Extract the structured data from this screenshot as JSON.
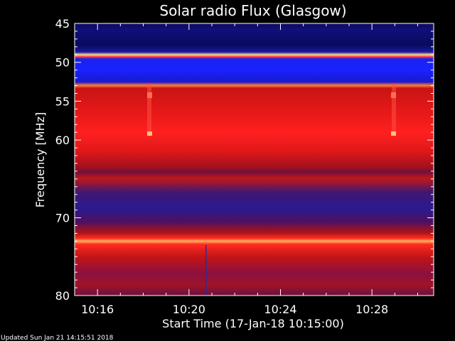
{
  "chart_data": {
    "type": "heatmap",
    "title": "Solar radio Flux (Glasgow)",
    "xlabel": "Start Time (17-Jan-18 10:15:00)",
    "ylabel": "Frequency [MHz]",
    "x_ticks": [
      "10:16",
      "10:20",
      "10:24",
      "10:28"
    ],
    "x_tick_minutes": [
      16,
      20,
      24,
      28
    ],
    "xlim_minutes": [
      15,
      30.7
    ],
    "y_ticks": [
      45,
      50,
      55,
      60,
      70,
      80
    ],
    "ylim": [
      45,
      80
    ],
    "grid": false,
    "colors": {
      "background": "#000000",
      "low": "#0a0a6e",
      "mid_blue": "#1a22ff",
      "mid_red": "#c81414",
      "high": "#ff2020",
      "peak": "#ffd070"
    }
  },
  "footer": "Updated Sun Jan 21 14:15:51 2018"
}
